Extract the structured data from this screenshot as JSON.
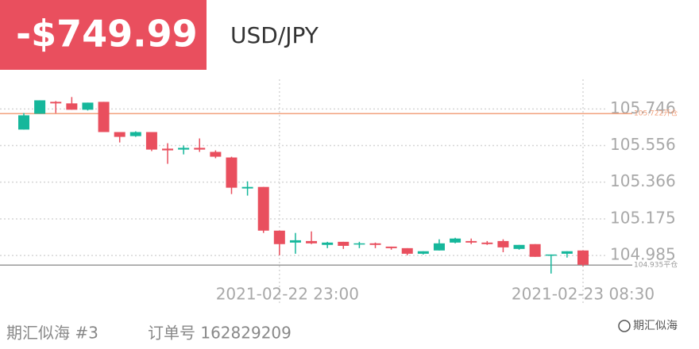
{
  "header": {
    "pnl": "-$749.99",
    "symbol": "USD/JPY"
  },
  "chart_data": {
    "type": "candlestick",
    "categories": [
      null,
      null,
      null,
      null,
      null,
      null,
      null,
      null,
      null,
      null,
      null,
      null,
      null,
      null,
      null,
      null,
      "2021-02-22 23:00",
      null,
      null,
      null,
      null,
      null,
      null,
      null,
      null,
      null,
      null,
      null,
      null,
      null,
      null,
      null,
      null,
      null,
      null,
      "2021-02-23 08:30"
    ],
    "open": [
      105.639,
      105.721,
      105.783,
      105.775,
      105.742,
      105.783,
      105.626,
      105.605,
      105.626,
      105.54,
      105.535,
      105.544,
      105.523,
      105.494,
      105.333,
      105.341,
      105.114,
      105.052,
      105.06,
      105.04,
      105.056,
      105.044,
      105.048,
      105.031,
      105.023,
      104.994,
      105.011,
      105.052,
      105.06,
      105.052,
      105.06,
      105.019,
      105.044,
      104.986,
      104.994,
      105.011
    ],
    "high": [
      105.725,
      105.791,
      105.787,
      105.808,
      105.779,
      105.783,
      105.626,
      105.63,
      105.626,
      105.568,
      105.556,
      105.593,
      105.531,
      105.498,
      105.37,
      105.341,
      105.114,
      105.102,
      105.11,
      105.056,
      105.056,
      105.056,
      105.052,
      105.031,
      105.023,
      105.007,
      105.069,
      105.077,
      105.073,
      105.06,
      105.069,
      105.04,
      105.044,
      104.99,
      105.007,
      105.011
    ],
    "low": [
      105.639,
      105.721,
      105.725,
      105.742,
      105.738,
      105.626,
      105.572,
      105.601,
      105.527,
      105.461,
      105.51,
      105.523,
      105.49,
      105.304,
      105.296,
      105.102,
      104.986,
      104.994,
      105.044,
      105.023,
      105.019,
      105.023,
      105.023,
      105.015,
      104.986,
      104.99,
      105.011,
      105.048,
      105.044,
      105.04,
      105.002,
      105.015,
      104.978,
      104.891,
      104.974,
      104.929
    ],
    "close": [
      105.713,
      105.791,
      105.775,
      105.742,
      105.779,
      105.626,
      105.601,
      105.626,
      105.535,
      105.531,
      105.544,
      105.535,
      105.498,
      105.337,
      105.341,
      105.114,
      105.044,
      105.064,
      105.048,
      105.052,
      105.035,
      105.048,
      105.04,
      105.023,
      104.994,
      105.007,
      105.048,
      105.073,
      105.052,
      105.044,
      105.027,
      105.04,
      104.978,
      104.99,
      105.007,
      104.937
    ],
    "up_color": "#16b79b",
    "down_color": "#e94f5e",
    "ylim": [
      104.87,
      105.9
    ],
    "yticks": [
      105.746,
      105.556,
      105.366,
      105.175,
      104.985
    ],
    "grid": true,
    "reference_lines": [
      {
        "value": 105.722,
        "label": "105.722开仓",
        "color": "#f2a27e"
      },
      {
        "value": 104.935,
        "label": "104.935平仓",
        "color": "#9a9a9a"
      }
    ]
  },
  "footer": {
    "account": "期汇似海 #3",
    "order": "订单号 162829209",
    "watermark": "期汇似海"
  }
}
